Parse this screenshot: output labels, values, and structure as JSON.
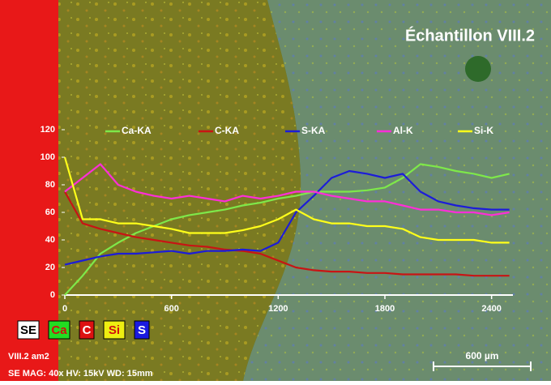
{
  "chart_data": {
    "type": "line",
    "title": "Échantillon VIII.2",
    "x": [
      0,
      100,
      200,
      300,
      400,
      500,
      600,
      700,
      800,
      900,
      1000,
      1100,
      1200,
      1300,
      1400,
      1500,
      1600,
      1700,
      1800,
      1900,
      2000,
      2100,
      2200,
      2300,
      2400,
      2500
    ],
    "series": [
      {
        "name": "Ca-KA",
        "color": "#7ee84a",
        "values": [
          0,
          14,
          30,
          38,
          45,
          50,
          55,
          58,
          60,
          62,
          65,
          67,
          70,
          72,
          75,
          75,
          75,
          76,
          78,
          85,
          95,
          93,
          90,
          88,
          85,
          88
        ]
      },
      {
        "name": "C-KA",
        "color": "#c81414",
        "values": [
          75,
          52,
          48,
          45,
          42,
          40,
          38,
          36,
          35,
          33,
          32,
          30,
          25,
          20,
          18,
          17,
          17,
          16,
          16,
          15,
          15,
          15,
          15,
          14,
          14,
          14
        ]
      },
      {
        "name": "S-KA",
        "color": "#1c1cd8",
        "values": [
          22,
          25,
          28,
          30,
          30,
          31,
          32,
          30,
          32,
          32,
          33,
          32,
          38,
          60,
          72,
          85,
          90,
          88,
          85,
          88,
          75,
          68,
          65,
          63,
          62,
          62
        ]
      },
      {
        "name": "Al-K",
        "color": "#ff2ed8",
        "values": [
          75,
          85,
          95,
          80,
          75,
          72,
          70,
          72,
          70,
          68,
          72,
          70,
          72,
          75,
          75,
          72,
          70,
          68,
          68,
          65,
          62,
          62,
          60,
          60,
          58,
          60
        ]
      },
      {
        "name": "Si-K",
        "color": "#ffff1a",
        "values": [
          100,
          55,
          55,
          52,
          52,
          50,
          48,
          45,
          45,
          45,
          47,
          50,
          55,
          62,
          55,
          52,
          52,
          50,
          50,
          48,
          42,
          40,
          40,
          40,
          38,
          38
        ]
      }
    ],
    "xlim": [
      0,
      2520
    ],
    "xticks": [
      0,
      600,
      1200,
      1800,
      2400
    ],
    "ylim": [
      0,
      120
    ],
    "yticks": [
      0,
      20,
      40,
      60,
      80,
      100,
      120
    ],
    "map_labels": [
      {
        "text": "SE",
        "color": "#ffffff"
      },
      {
        "text": "Ca",
        "color": "#22dd22"
      },
      {
        "text": "C",
        "color": "#dd1111"
      },
      {
        "text": "Si",
        "color": "#eeee11"
      },
      {
        "text": "S",
        "color": "#1a1ae0"
      }
    ],
    "sample": "VIII.2 am2",
    "info": "SE  MAG: 40x  HV: 15kV  WD: 15mm",
    "scale_bar": "600 µm"
  }
}
